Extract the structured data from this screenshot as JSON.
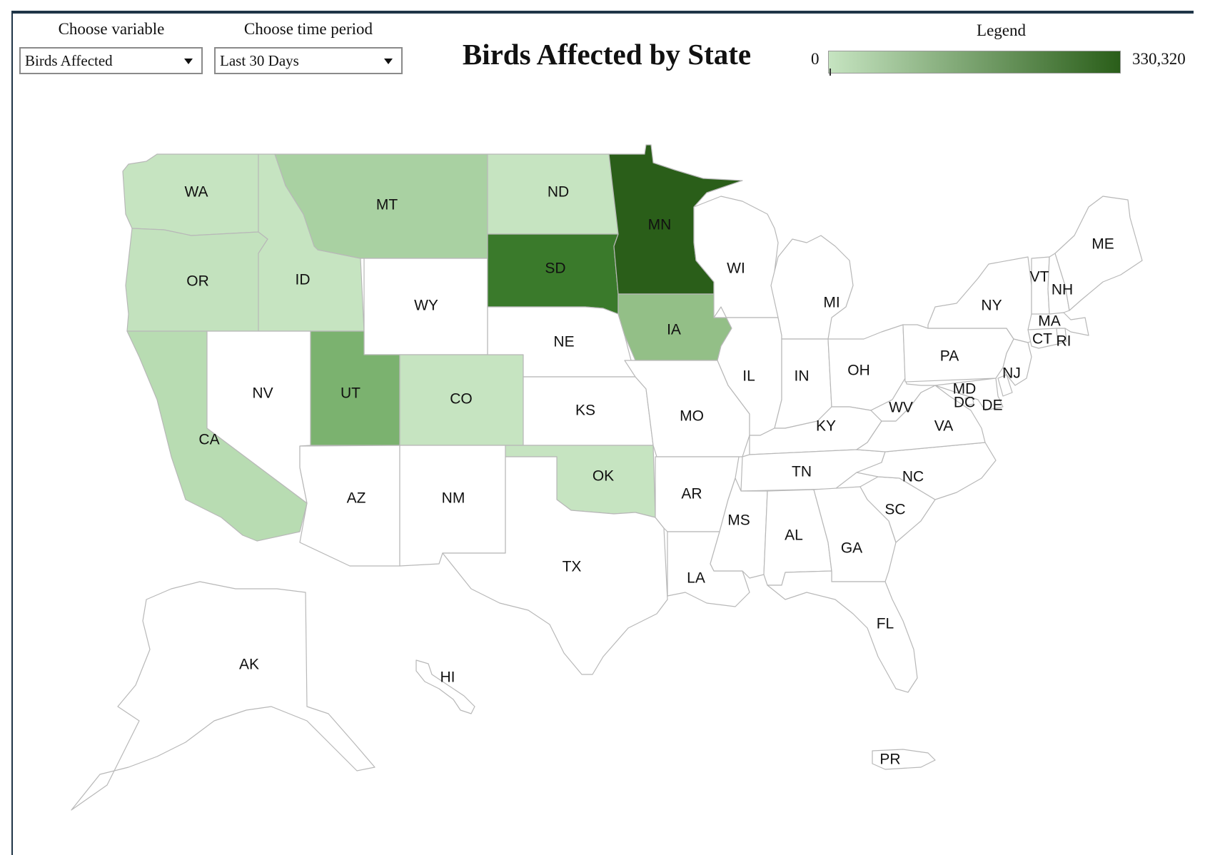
{
  "controls": {
    "variable": {
      "label": "Choose variable",
      "value": "Birds Affected"
    },
    "period": {
      "label": "Choose time period",
      "value": "Last 30 Days"
    }
  },
  "title": "Birds Affected by State",
  "legend": {
    "title": "Legend",
    "min_label": "0",
    "max_label": "330,320",
    "color_low": "#c6e4c1",
    "color_high": "#2a5e19"
  },
  "no_data_color": "#ffffff",
  "states": [
    {
      "id": "WA",
      "label": "WA",
      "color": "#c6e4c1"
    },
    {
      "id": "OR",
      "label": "OR",
      "color": "#c3e2be"
    },
    {
      "id": "CA",
      "label": "CA",
      "color": "#b8dcb2"
    },
    {
      "id": "ID",
      "label": "ID",
      "color": "#c6e4c1"
    },
    {
      "id": "NV",
      "label": "NV",
      "color": "#ffffff"
    },
    {
      "id": "MT",
      "label": "MT",
      "color": "#a9d1a2"
    },
    {
      "id": "WY",
      "label": "WY",
      "color": "#ffffff"
    },
    {
      "id": "UT",
      "label": "UT",
      "color": "#7bb26f"
    },
    {
      "id": "CO",
      "label": "CO",
      "color": "#c6e4c1"
    },
    {
      "id": "AZ",
      "label": "AZ",
      "color": "#ffffff"
    },
    {
      "id": "NM",
      "label": "NM",
      "color": "#ffffff"
    },
    {
      "id": "ND",
      "label": "ND",
      "color": "#c6e4c1"
    },
    {
      "id": "SD",
      "label": "SD",
      "color": "#3a7a2b"
    },
    {
      "id": "NE",
      "label": "NE",
      "color": "#ffffff"
    },
    {
      "id": "KS",
      "label": "KS",
      "color": "#ffffff"
    },
    {
      "id": "OK",
      "label": "OK",
      "color": "#c6e4c1"
    },
    {
      "id": "TX",
      "label": "TX",
      "color": "#ffffff"
    },
    {
      "id": "MN",
      "label": "MN",
      "color": "#2a5e19"
    },
    {
      "id": "IA",
      "label": "IA",
      "color": "#93bf87"
    },
    {
      "id": "MO",
      "label": "MO",
      "color": "#ffffff"
    },
    {
      "id": "AR",
      "label": "AR",
      "color": "#ffffff"
    },
    {
      "id": "LA",
      "label": "LA",
      "color": "#ffffff"
    },
    {
      "id": "WI",
      "label": "WI",
      "color": "#ffffff"
    },
    {
      "id": "IL",
      "label": "IL",
      "color": "#ffffff"
    },
    {
      "id": "MI",
      "label": "MI",
      "color": "#ffffff"
    },
    {
      "id": "IN",
      "label": "IN",
      "color": "#ffffff"
    },
    {
      "id": "OH",
      "label": "OH",
      "color": "#ffffff"
    },
    {
      "id": "KY",
      "label": "KY",
      "color": "#ffffff"
    },
    {
      "id": "TN",
      "label": "TN",
      "color": "#ffffff"
    },
    {
      "id": "MS",
      "label": "MS",
      "color": "#ffffff"
    },
    {
      "id": "AL",
      "label": "AL",
      "color": "#ffffff"
    },
    {
      "id": "GA",
      "label": "GA",
      "color": "#ffffff"
    },
    {
      "id": "FL",
      "label": "FL",
      "color": "#ffffff"
    },
    {
      "id": "SC",
      "label": "SC",
      "color": "#ffffff"
    },
    {
      "id": "NC",
      "label": "NC",
      "color": "#ffffff"
    },
    {
      "id": "VA",
      "label": "VA",
      "color": "#ffffff"
    },
    {
      "id": "WV",
      "label": "WV",
      "color": "#ffffff"
    },
    {
      "id": "PA",
      "label": "PA",
      "color": "#ffffff"
    },
    {
      "id": "NY",
      "label": "NY",
      "color": "#ffffff"
    },
    {
      "id": "NJ",
      "label": "NJ",
      "color": "#ffffff"
    },
    {
      "id": "DE",
      "label": "DE",
      "color": "#ffffff"
    },
    {
      "id": "MD",
      "label": "MD",
      "color": "#ffffff"
    },
    {
      "id": "DC",
      "label": "DC",
      "color": "#ffffff"
    },
    {
      "id": "CT",
      "label": "CT",
      "color": "#ffffff"
    },
    {
      "id": "RI",
      "label": "RI",
      "color": "#ffffff"
    },
    {
      "id": "MA",
      "label": "MA",
      "color": "#ffffff"
    },
    {
      "id": "VT",
      "label": "VT",
      "color": "#ffffff"
    },
    {
      "id": "NH",
      "label": "NH",
      "color": "#ffffff"
    },
    {
      "id": "ME",
      "label": "ME",
      "color": "#ffffff"
    },
    {
      "id": "AK",
      "label": "AK",
      "color": "#ffffff"
    },
    {
      "id": "HI",
      "label": "HI",
      "color": "#ffffff"
    },
    {
      "id": "PR",
      "label": "PR",
      "color": "#ffffff"
    }
  ]
}
